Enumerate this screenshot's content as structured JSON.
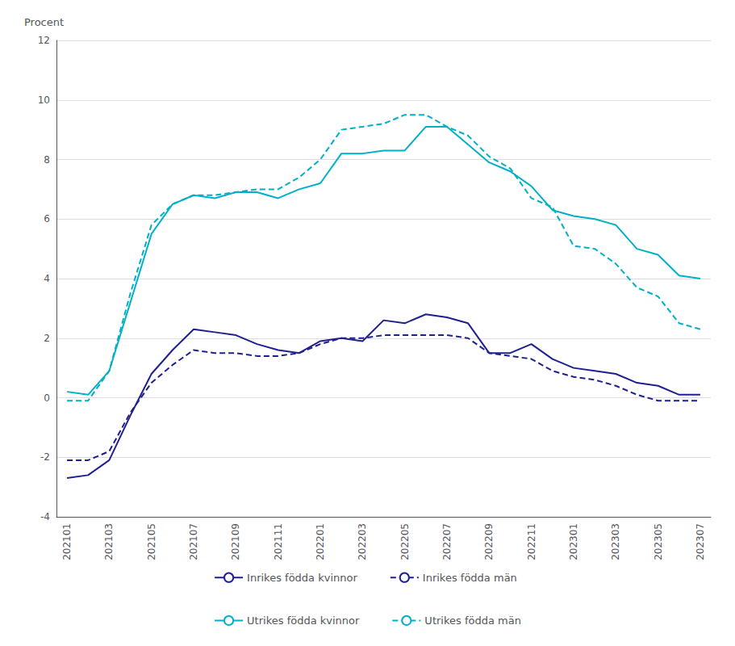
{
  "chart_data": {
    "type": "line",
    "ylabel": "Procent",
    "categories": [
      "202101",
      null,
      "202103",
      null,
      "202105",
      null,
      "202107",
      null,
      "202109",
      null,
      "202111",
      null,
      "202201",
      null,
      "202203",
      null,
      "202205",
      null,
      "202207",
      null,
      "202209",
      null,
      "202211",
      null,
      "202301",
      null,
      "202303",
      null,
      "202305",
      null,
      "202307"
    ],
    "series": [
      {
        "name": "Inrikes födda kvinnor",
        "color": "#1f1f8f",
        "line_style": "solid",
        "values": [
          -2.7,
          -2.6,
          -2.1,
          -0.6,
          0.8,
          1.6,
          2.3,
          2.2,
          2.1,
          1.8,
          1.6,
          1.5,
          1.9,
          2.0,
          1.9,
          2.6,
          2.5,
          2.8,
          2.7,
          2.5,
          1.5,
          1.5,
          1.8,
          1.3,
          1.0,
          0.9,
          0.8,
          0.5,
          0.4,
          0.1,
          0.1
        ]
      },
      {
        "name": "Inrikes födda män",
        "color": "#1f1f8f",
        "line_style": "dashed",
        "values": [
          -2.1,
          -2.1,
          -1.8,
          -0.5,
          0.5,
          1.1,
          1.6,
          1.5,
          1.5,
          1.4,
          1.4,
          1.5,
          1.8,
          2.0,
          2.0,
          2.1,
          2.1,
          2.1,
          2.1,
          2.0,
          1.5,
          1.4,
          1.3,
          0.9,
          0.7,
          0.6,
          0.4,
          0.1,
          -0.1,
          -0.1,
          -0.1
        ]
      },
      {
        "name": "Utrikes födda kvinnor",
        "color": "#00b0c8",
        "line_style": "solid",
        "values": [
          0.2,
          0.1,
          0.9,
          3.2,
          5.5,
          6.5,
          6.8,
          6.7,
          6.9,
          6.9,
          6.7,
          7.0,
          7.2,
          8.2,
          8.2,
          8.3,
          8.3,
          9.1,
          9.1,
          8.5,
          7.9,
          7.6,
          7.1,
          6.3,
          6.1,
          6.0,
          5.8,
          5.0,
          4.8,
          4.1,
          4.0
        ]
      },
      {
        "name": "Utrikes födda män",
        "color": "#00b0c8",
        "line_style": "dashed",
        "values": [
          -0.1,
          -0.1,
          0.9,
          3.5,
          5.8,
          6.5,
          6.8,
          6.8,
          6.9,
          7.0,
          7.0,
          7.4,
          8.0,
          9.0,
          9.1,
          9.2,
          9.5,
          9.5,
          9.1,
          8.8,
          8.1,
          7.7,
          6.7,
          6.4,
          5.1,
          5.0,
          4.5,
          3.7,
          3.4,
          2.5,
          2.3
        ]
      }
    ],
    "ylim": [
      -4,
      12
    ],
    "yticks": [
      -4,
      -2,
      0,
      2,
      4,
      6,
      8,
      10,
      12
    ],
    "grid": true,
    "legend": "bottom"
  }
}
